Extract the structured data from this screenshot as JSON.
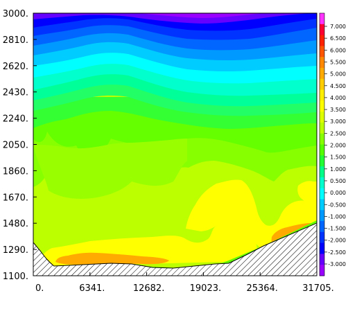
{
  "chart_data": {
    "type": "heatmap",
    "title": "",
    "xlabel": "",
    "ylabel": "",
    "xlim": [
      0,
      31705
    ],
    "ylim": [
      1100,
      3000
    ],
    "x_ticks": [
      "0.",
      "6341.",
      "12682.",
      "19023.",
      "25364.",
      "31705."
    ],
    "y_ticks": [
      "3000.",
      "2810.",
      "2620.",
      "2430.",
      "2240.",
      "2050.",
      "1860.",
      "1670.",
      "1480.",
      "1290.",
      "1100."
    ],
    "colorbar": {
      "levels": [
        "7.000",
        "6.500",
        "6.000",
        "5.500",
        "5.000",
        "4.500",
        "4.000",
        "3.500",
        "3.000",
        "2.500",
        "2.000",
        "1.500",
        "1.000",
        "0.500",
        "0.000",
        "-0.500",
        "-1.000",
        "-1.500",
        "-2.000",
        "-2.500",
        "-3.000"
      ],
      "colors": [
        "#ff33ff",
        "#ff0033",
        "#ff2200",
        "#ff5500",
        "#ff8800",
        "#ffaa00",
        "#ffcc00",
        "#ffee00",
        "#ffff00",
        "#ddff00",
        "#bbff00",
        "#88ff00",
        "#55ff00",
        "#22ff33",
        "#00ff88",
        "#00ffcc",
        "#00ffff",
        "#00ccff",
        "#0099ff",
        "#0066ff",
        "#0033ff",
        "#0000ff",
        "#6600ff",
        "#9900ff"
      ]
    },
    "fill_colors": {
      "top_band_1": "#9900ff",
      "top_band_2": "#6600ff",
      "top_band_3": "#0000ff",
      "top_band_4": "#0033ff",
      "top_band_5": "#0066ff",
      "top_band_6": "#0099ff",
      "top_band_7": "#00ccff",
      "top_band_8": "#00ffff",
      "top_band_9": "#00ffcc",
      "top_band_10": "#00ff99",
      "top_band_11": "#22ff66",
      "top_band_12": "#33ff33",
      "mid_green": "#66ff00",
      "yellow_green": "#99ff00",
      "lime": "#bbff00",
      "yellow": "#ffff00",
      "orange": "#ffaa00",
      "dark_orange": "#ff6600"
    },
    "terrain": "hatched"
  }
}
